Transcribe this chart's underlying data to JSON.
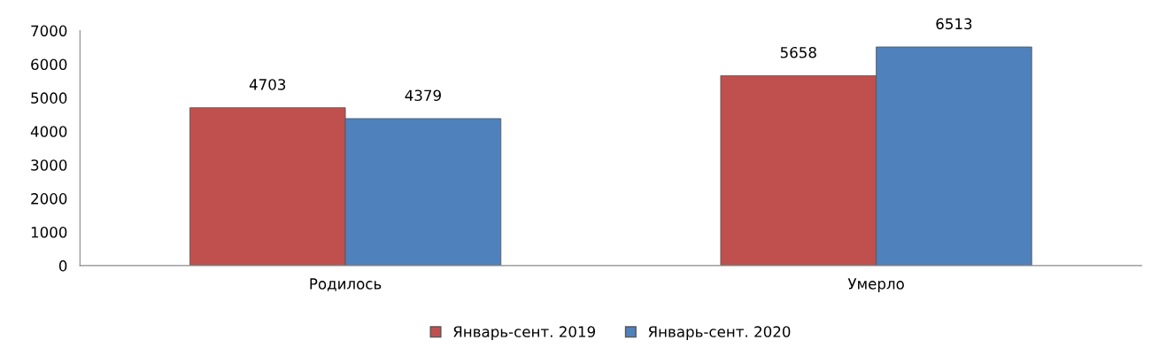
{
  "chart_data": {
    "type": "bar",
    "categories": [
      "Родилось",
      "Умерло"
    ],
    "series": [
      {
        "name": "Январь-сент. 2019",
        "color": "#c0504d",
        "values": [
          4703,
          5658
        ]
      },
      {
        "name": "Январь-сент. 2020",
        "color": "#4f81bd",
        "values": [
          4379,
          6513
        ]
      }
    ],
    "ylim": [
      0,
      7000
    ],
    "yticks": [
      0,
      1000,
      2000,
      3000,
      4000,
      5000,
      6000,
      7000
    ],
    "grid": false,
    "legend": "bottom",
    "data_labels": true
  }
}
